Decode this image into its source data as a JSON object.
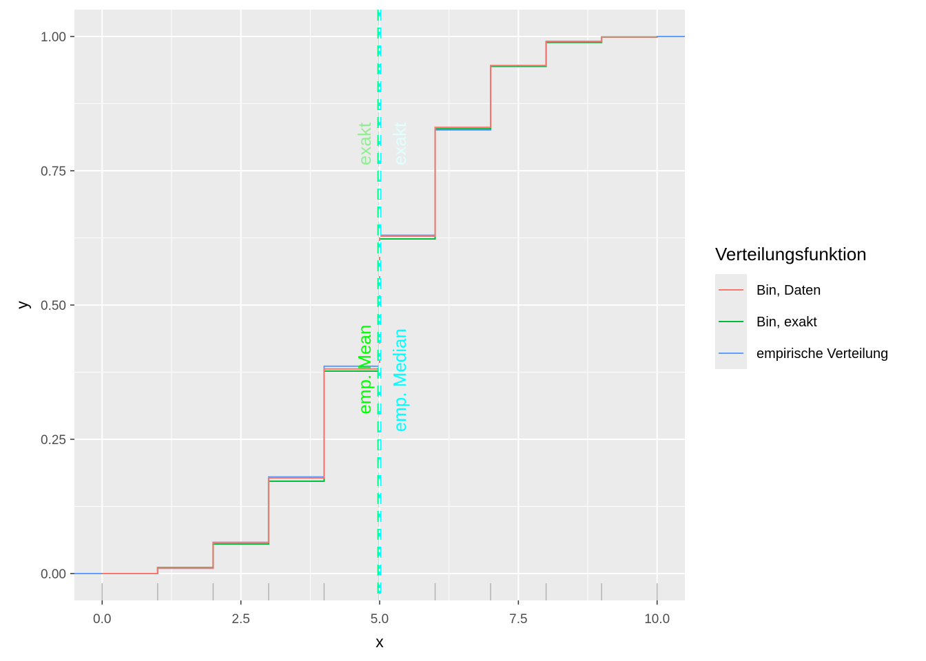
{
  "chart_data": {
    "type": "line",
    "step": true,
    "xlabel": "x",
    "ylabel": "y",
    "xlim": [
      -0.5,
      10.5
    ],
    "ylim": [
      -0.05,
      1.05
    ],
    "xticks": [
      0,
      2.5,
      5,
      7.5,
      10
    ],
    "xtick_labels": [
      "0.0",
      "2.5",
      "5.0",
      "7.5",
      "10.0"
    ],
    "yticks": [
      0,
      0.25,
      0.5,
      0.75,
      1
    ],
    "ytick_labels": [
      "0.00",
      "0.25",
      "0.50",
      "0.75",
      "1.00"
    ],
    "grid": true,
    "background": "#EBEBEB",
    "rug_x": [
      0,
      1,
      2,
      3,
      4,
      5,
      6,
      7,
      8,
      9,
      10
    ],
    "legend": {
      "title": "Verteilungsfunktion",
      "placement": "right"
    },
    "series": [
      {
        "name": "empirische Verteilung",
        "color": "#619CFF",
        "x": [
          -0.5,
          1,
          2,
          3,
          4,
          5,
          6,
          7,
          8,
          9,
          10,
          10.5
        ],
        "values": [
          0.0,
          0.01,
          0.058,
          0.18,
          0.386,
          0.63,
          0.826,
          0.944,
          0.99,
          0.999,
          1.0,
          1.0
        ]
      },
      {
        "name": "Bin, exakt",
        "color": "#00BA38",
        "x": [
          0,
          1,
          2,
          3,
          4,
          5,
          6,
          7,
          8,
          9,
          10
        ],
        "values": [
          0.0,
          0.011,
          0.055,
          0.172,
          0.377,
          0.623,
          0.828,
          0.945,
          0.989,
          0.999,
          1.0
        ]
      },
      {
        "name": "Bin, Daten",
        "color": "#F8766D",
        "x": [
          0,
          1,
          2,
          3,
          4,
          5,
          6,
          7,
          8,
          9,
          10
        ],
        "values": [
          0.0,
          0.01,
          0.058,
          0.178,
          0.381,
          0.628,
          0.831,
          0.946,
          0.991,
          0.999,
          1.0
        ]
      }
    ],
    "reference_lines": [
      {
        "x": 4.99,
        "color": "#00FF00",
        "style": "dashed",
        "label": "emp. Mean",
        "label_y": 0.38
      },
      {
        "x": 5.0,
        "color": "#00FFFF",
        "style": "dashed",
        "label": "emp. Median",
        "label_y": 0.36
      },
      {
        "x": 4.99,
        "color": "#90EE90",
        "style": "dotdash",
        "label": "exakt",
        "label_y": 0.8
      },
      {
        "x": 5.0,
        "color": "#E0FFFF",
        "style": "dotdash",
        "label": "exakt",
        "label_y": 0.8
      }
    ]
  }
}
